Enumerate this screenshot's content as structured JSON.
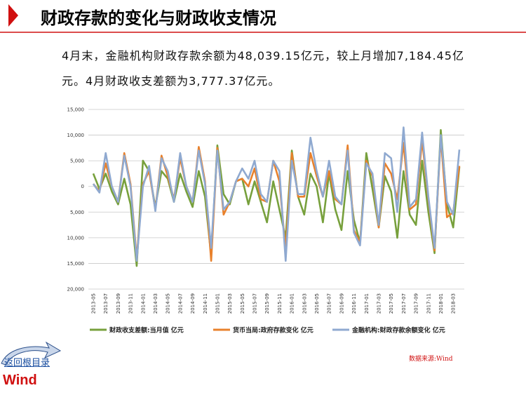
{
  "header": {
    "title": "财政存款的变化与财政收支情况"
  },
  "paragraph": "4月末，金融机构财政存款余额为48,039.15亿元，较上月增加7,184.45亿元。4月财政收支差额为3,777.37亿元。",
  "chart_data": {
    "type": "line",
    "categories": [
      "2013-05",
      null,
      "2013-07",
      null,
      "2013-09",
      null,
      "2013-11",
      null,
      "2014-01",
      null,
      "2014-03",
      null,
      "2014-05",
      null,
      "2014-07",
      null,
      "2014-09",
      null,
      "2014-11",
      null,
      "2015-01",
      null,
      "2015-03",
      null,
      "2015-05",
      null,
      "2015-07",
      null,
      "2015-09",
      null,
      "2015-11",
      null,
      "2016-01",
      null,
      "2016-03",
      null,
      "2016-05",
      null,
      "2016-07",
      null,
      "2016-09",
      null,
      "2016-11",
      null,
      "2017-01",
      null,
      "2017-03",
      null,
      "2017-05",
      null,
      "2017-07",
      null,
      "2017-09",
      null,
      "2017-11",
      null,
      "2018-01",
      null,
      "2018-03",
      null
    ],
    "series": [
      {
        "name": "财政收支差额:当月值 亿元",
        "color": "#77a03c",
        "values": [
          2500,
          -500,
          2500,
          -1000,
          -3500,
          1500,
          -3500,
          -15500,
          5000,
          3000,
          -4000,
          3000,
          1500,
          -3000,
          2500,
          -1000,
          -4000,
          3000,
          -2000,
          -13500,
          8000,
          -1500,
          -3500,
          1000,
          1500,
          -3500,
          1000,
          -3000,
          -7000,
          1000,
          -4500,
          -10000,
          7000,
          -2000,
          -5500,
          2500,
          0,
          -7000,
          2500,
          -4500,
          -8500,
          3000,
          -6500,
          -11000,
          6500,
          -500,
          -8000,
          2000,
          -1000,
          -10000,
          3000,
          -5500,
          -7500,
          5000,
          -5000,
          -13000,
          11000,
          -3500,
          -8000,
          3777.37
        ]
      },
      {
        "name": "货币当局:政府存款变化 亿元",
        "color": "#e8812c",
        "values": [
          500,
          -1000,
          4500,
          0,
          -3000,
          6500,
          500,
          -14000,
          500,
          3000,
          -4500,
          6000,
          2000,
          -2500,
          5500,
          0,
          -3000,
          7700,
          1000,
          -14500,
          7500,
          -5500,
          -3000,
          1000,
          1500,
          0,
          3500,
          -2500,
          -3000,
          5000,
          1000,
          -12500,
          6500,
          -2000,
          -2000,
          6500,
          2000,
          -2000,
          3000,
          -2500,
          -3500,
          8000,
          -8500,
          -11000,
          5000,
          2000,
          -8000,
          4500,
          2500,
          -2500,
          8500,
          -4500,
          -3500,
          9000,
          -2500,
          -12500,
          9500,
          -6000,
          -5000,
          4000
        ]
      },
      {
        "name": "金融机构:财政存款余额变化 亿元",
        "color": "#8fa9d0",
        "values": [
          500,
          -1200,
          6500,
          0,
          -3000,
          6000,
          0,
          -14500,
          0,
          4000,
          -4800,
          5500,
          3000,
          -3000,
          6500,
          0,
          -3000,
          7000,
          500,
          -12000,
          7000,
          -4500,
          -3000,
          1000,
          3500,
          1500,
          5000,
          -1500,
          -3000,
          5000,
          3000,
          -14500,
          5000,
          -1500,
          -1500,
          9500,
          3000,
          -2000,
          5000,
          -2000,
          -3500,
          7000,
          -9000,
          -11500,
          4500,
          2500,
          -7500,
          6500,
          5500,
          -5000,
          11500,
          -4000,
          -2500,
          10500,
          -2000,
          -12000,
          10000,
          -3000,
          -5500,
          7184.45
        ]
      }
    ],
    "ylim": [
      -20000,
      15000
    ],
    "yticks": [
      {
        "value": 15000,
        "label": "15,000"
      },
      {
        "value": 10000,
        "label": "10,000"
      },
      {
        "value": 5000,
        "label": "5,000"
      },
      0,
      {
        "value": -5000,
        "label": "5,000"
      },
      {
        "value": -10000,
        "label": "10,000"
      },
      {
        "value": -15000,
        "label": "15,000"
      },
      {
        "value": -20000,
        "label": "20,000"
      }
    ],
    "grid": true,
    "legend": "bottom"
  },
  "source": "数据来源:Wind",
  "nav": {
    "back": "返回根目录"
  },
  "logo": "Wind"
}
